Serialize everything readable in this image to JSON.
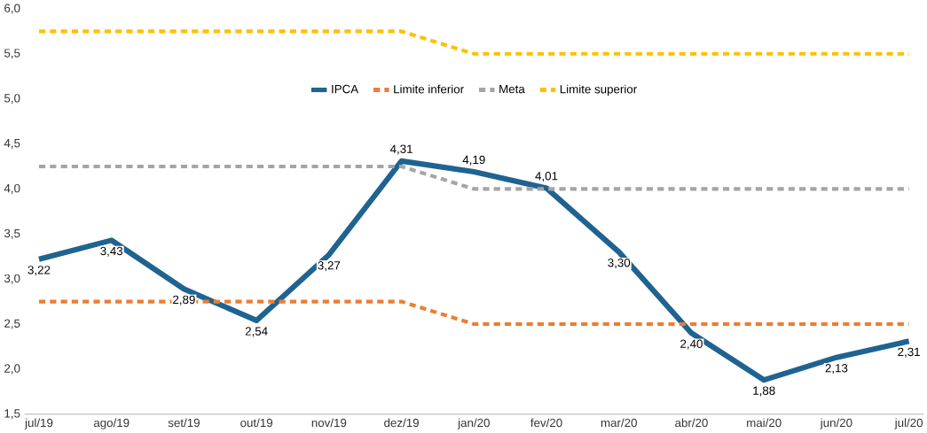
{
  "chart_data": {
    "type": "line",
    "categories": [
      "jul/19",
      "ago/19",
      "set/19",
      "out/19",
      "nov/19",
      "dez/19",
      "jan/20",
      "fev/20",
      "mar/20",
      "abr/20",
      "mai/20",
      "jun/20",
      "jul/20"
    ],
    "series": [
      {
        "name": "IPCA",
        "color": "#1f6391",
        "values": [
          3.22,
          3.43,
          2.89,
          2.54,
          3.27,
          4.31,
          4.19,
          4.01,
          3.3,
          2.4,
          1.88,
          2.13,
          2.31
        ],
        "value_labels": [
          "3,22",
          "3,43",
          "2,89",
          "2,54",
          "3,27",
          "4,31",
          "4,19",
          "4,01",
          "3,30",
          "2,40",
          "1,88",
          "2,13",
          "2,31"
        ],
        "line_style": "solid"
      },
      {
        "name": "Limite inferior",
        "color": "#ed7d31",
        "values": [
          2.75,
          2.75,
          2.75,
          2.75,
          2.75,
          2.75,
          2.5,
          2.5,
          2.5,
          2.5,
          2.5,
          2.5,
          2.5
        ],
        "line_style": "dashed"
      },
      {
        "name": "Meta",
        "color": "#a5a5a5",
        "values": [
          4.25,
          4.25,
          4.25,
          4.25,
          4.25,
          4.25,
          4.0,
          4.0,
          4.0,
          4.0,
          4.0,
          4.0,
          4.0
        ],
        "line_style": "dashed"
      },
      {
        "name": "Limite superior",
        "color": "#ffc000",
        "values": [
          5.75,
          5.75,
          5.75,
          5.75,
          5.75,
          5.75,
          5.5,
          5.5,
          5.5,
          5.5,
          5.5,
          5.5,
          5.5
        ],
        "line_style": "dashed"
      }
    ],
    "ylim": [
      1.5,
      6.0
    ],
    "yticks": [
      {
        "value": 1.5,
        "label": "1,5"
      },
      {
        "value": 2.0,
        "label": "2,0"
      },
      {
        "value": 2.5,
        "label": "2,5"
      },
      {
        "value": 3.0,
        "label": "3,0"
      },
      {
        "value": 3.5,
        "label": "3,5"
      },
      {
        "value": 4.0,
        "label": "4,0"
      },
      {
        "value": 4.5,
        "label": "4,5"
      },
      {
        "value": 5.0,
        "label": "5,0"
      },
      {
        "value": 5.5,
        "label": "5,5"
      },
      {
        "value": 6.0,
        "label": "6,0"
      }
    ],
    "grid": false,
    "legend": "top",
    "marker": "none"
  }
}
